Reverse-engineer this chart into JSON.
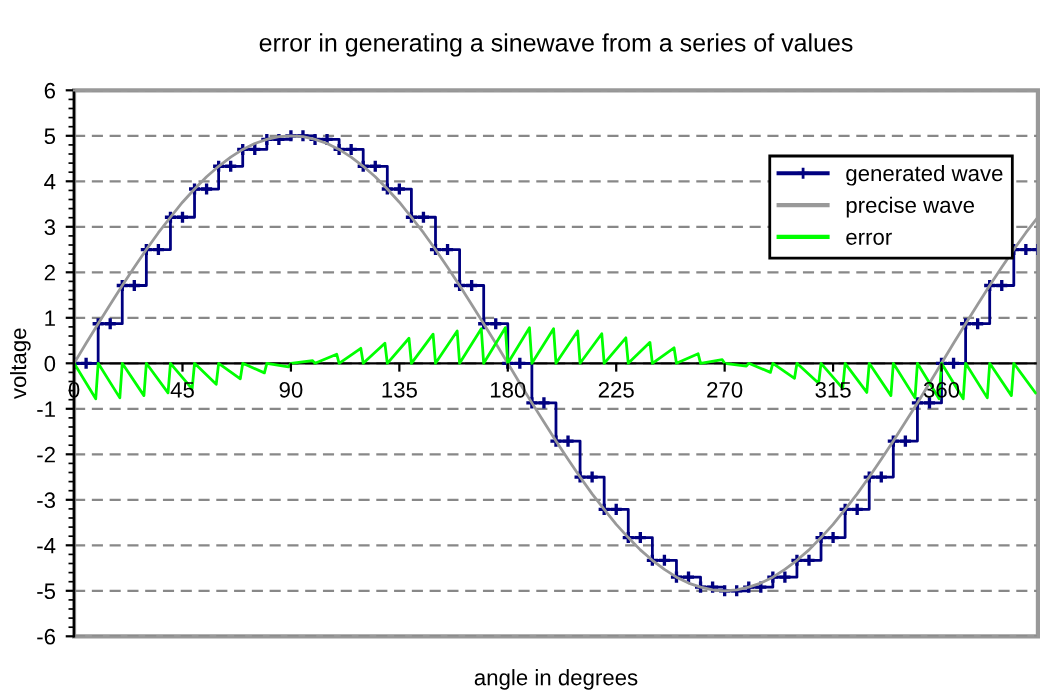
{
  "chart_data": {
    "type": "line",
    "title": "error in generating a sinewave from a series of values",
    "xlabel": "angle in degrees",
    "ylabel": "voltage",
    "xlim": [
      0,
      400
    ],
    "xticks": [
      0,
      45,
      90,
      135,
      180,
      225,
      270,
      315,
      360
    ],
    "ylim": [
      -6,
      6
    ],
    "yticks": [
      -6,
      -5,
      -4,
      -3,
      -2,
      -1,
      0,
      1,
      2,
      3,
      4,
      5,
      6
    ],
    "grid": "y",
    "legend": "top right",
    "series": [
      {
        "name": "generated wave",
        "type": "step",
        "color": "#000080",
        "marker": "cross",
        "x": [
          0,
          5,
          10,
          15,
          20,
          25,
          30,
          35,
          40,
          45,
          50,
          55,
          60,
          65,
          70,
          75,
          80,
          85,
          90,
          95,
          100,
          105,
          110,
          115,
          120,
          125,
          130,
          135,
          140,
          145,
          150,
          155,
          160,
          165,
          170,
          175,
          180,
          185,
          190,
          195,
          200,
          205,
          210,
          215,
          220,
          225,
          230,
          235,
          240,
          245,
          250,
          255,
          260,
          265,
          270,
          275,
          280,
          285,
          290,
          295,
          300,
          305,
          310,
          315,
          320,
          325,
          330,
          335,
          340,
          345,
          350,
          355,
          360,
          365,
          370,
          375,
          380,
          385,
          390,
          395,
          400
        ],
        "values": [
          0,
          0,
          0.87,
          0.87,
          1.71,
          1.71,
          2.5,
          2.5,
          3.21,
          3.21,
          3.83,
          3.83,
          4.33,
          4.33,
          4.7,
          4.7,
          4.92,
          4.92,
          5,
          5,
          4.92,
          4.92,
          4.7,
          4.7,
          4.33,
          4.33,
          3.83,
          3.83,
          3.21,
          3.21,
          2.5,
          2.5,
          1.71,
          1.71,
          0.87,
          0.87,
          0,
          0,
          -0.87,
          -0.87,
          -1.71,
          -1.71,
          -2.5,
          -2.5,
          -3.21,
          -3.21,
          -3.83,
          -3.83,
          -4.33,
          -4.33,
          -4.7,
          -4.7,
          -4.92,
          -4.92,
          -5,
          -5,
          -4.92,
          -4.92,
          -4.7,
          -4.7,
          -4.33,
          -4.33,
          -3.83,
          -3.83,
          -3.21,
          -3.21,
          -2.5,
          -2.5,
          -1.71,
          -1.71,
          -0.87,
          -0.87,
          0,
          0,
          0.87,
          0.87,
          1.71,
          1.71,
          2.5,
          2.5,
          2.5
        ]
      },
      {
        "name": "precise wave",
        "color": "#999999",
        "marker": "none",
        "x": [
          0,
          5,
          10,
          15,
          20,
          25,
          30,
          35,
          40,
          45,
          50,
          55,
          60,
          65,
          70,
          75,
          80,
          85,
          90,
          95,
          100,
          105,
          110,
          115,
          120,
          125,
          130,
          135,
          140,
          145,
          150,
          155,
          160,
          165,
          170,
          175,
          180,
          185,
          190,
          195,
          200,
          205,
          210,
          215,
          220,
          225,
          230,
          235,
          240,
          245,
          250,
          255,
          260,
          265,
          270,
          275,
          280,
          285,
          290,
          295,
          300,
          305,
          310,
          315,
          320,
          325,
          330,
          335,
          340,
          345,
          350,
          355,
          360,
          365,
          370,
          375,
          380,
          385,
          390,
          395,
          400
        ],
        "values": [
          0,
          0.44,
          0.87,
          1.29,
          1.71,
          2.11,
          2.5,
          2.87,
          3.21,
          3.54,
          3.83,
          4.1,
          4.33,
          4.53,
          4.7,
          4.83,
          4.92,
          4.98,
          5,
          4.98,
          4.92,
          4.83,
          4.7,
          4.53,
          4.33,
          4.1,
          3.83,
          3.54,
          3.21,
          2.87,
          2.5,
          2.11,
          1.71,
          1.29,
          0.87,
          0.44,
          0,
          -0.44,
          -0.87,
          -1.29,
          -1.71,
          -2.11,
          -2.5,
          -2.87,
          -3.21,
          -3.54,
          -3.83,
          -4.1,
          -4.33,
          -4.53,
          -4.7,
          -4.83,
          -4.92,
          -4.98,
          -5,
          -4.98,
          -4.92,
          -4.83,
          -4.7,
          -4.53,
          -4.33,
          -4.1,
          -3.83,
          -3.54,
          -3.21,
          -2.87,
          -2.5,
          -2.11,
          -1.71,
          -1.29,
          -0.87,
          -0.44,
          0,
          0.44,
          0.87,
          1.29,
          1.71,
          2.11,
          2.5,
          2.87,
          3.21
        ]
      },
      {
        "name": "error",
        "color": "#00ff00",
        "marker": "none",
        "x": [
          0,
          9,
          10,
          19,
          20,
          29,
          30,
          39,
          40,
          49,
          50,
          59,
          60,
          69,
          70,
          79,
          80,
          89,
          90,
          99,
          100,
          109,
          110,
          119,
          120,
          129,
          130,
          139,
          140,
          149,
          150,
          159,
          160,
          169,
          170,
          179,
          180,
          189,
          190,
          199,
          200,
          209,
          210,
          219,
          220,
          229,
          230,
          239,
          240,
          249,
          250,
          259,
          260,
          269,
          270,
          279,
          280,
          289,
          290,
          299,
          300,
          309,
          310,
          319,
          320,
          329,
          330,
          339,
          340,
          349,
          350,
          359,
          360,
          369,
          370,
          379,
          380,
          389,
          390,
          399
        ],
        "values": [
          0,
          -0.78,
          0,
          -0.76,
          0,
          -0.71,
          0,
          -0.65,
          0,
          -0.56,
          0,
          -0.46,
          0,
          -0.34,
          0,
          -0.21,
          0,
          -0.08,
          0,
          0.06,
          0,
          0.2,
          0,
          0.33,
          0,
          0.44,
          0,
          0.55,
          0,
          0.64,
          0,
          0.71,
          0,
          0.76,
          0,
          0.78,
          0,
          0.78,
          0,
          0.76,
          0,
          0.71,
          0,
          0.65,
          0,
          0.56,
          0,
          0.46,
          0,
          0.34,
          0,
          0.21,
          0,
          0.08,
          0,
          -0.06,
          0,
          -0.2,
          0,
          -0.33,
          0,
          -0.44,
          0,
          -0.55,
          0,
          -0.64,
          0,
          -0.71,
          0,
          -0.76,
          0,
          -0.78,
          0,
          -0.78,
          0,
          -0.76,
          0,
          -0.71,
          0,
          -0.65
        ]
      }
    ]
  }
}
